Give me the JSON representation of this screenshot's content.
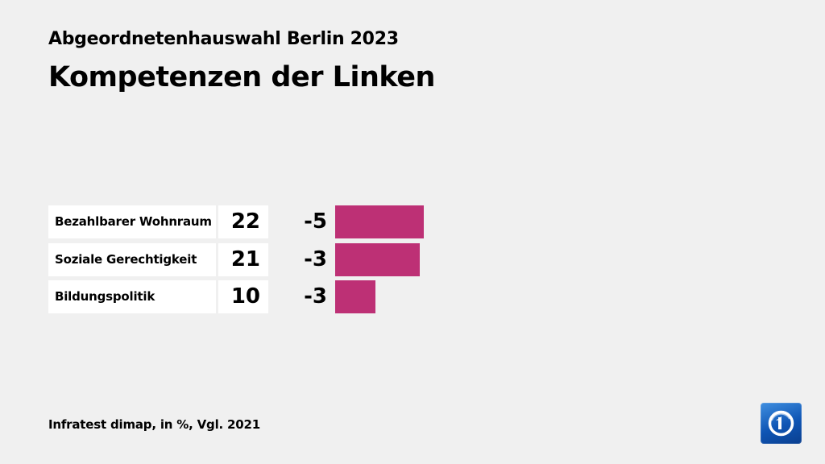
{
  "header": {
    "subtitle": "Abgeordnetenhauswahl Berlin 2023",
    "title": "Kompetenzen der Linken"
  },
  "footer": {
    "source": "Infratest dimap, in %, Vgl. 2021"
  },
  "logo": {
    "icon": "tagesschau-logo-icon"
  },
  "colors": {
    "bar": "#bd3075",
    "background": "#f0f0f0",
    "cell": "#ffffff"
  },
  "chart_data": {
    "type": "bar",
    "orientation": "horizontal",
    "categories": [
      "Bezahlbarer Wohnraum",
      "Soziale Gerechtigkeit",
      "Bildungspolitik"
    ],
    "values": [
      22,
      21,
      10
    ],
    "value_labels": [
      "22",
      "21",
      "10"
    ],
    "diffs": [
      "-5",
      "-3",
      "-3"
    ],
    "xlim": [
      0,
      22
    ],
    "grid": false,
    "legend": "none"
  }
}
